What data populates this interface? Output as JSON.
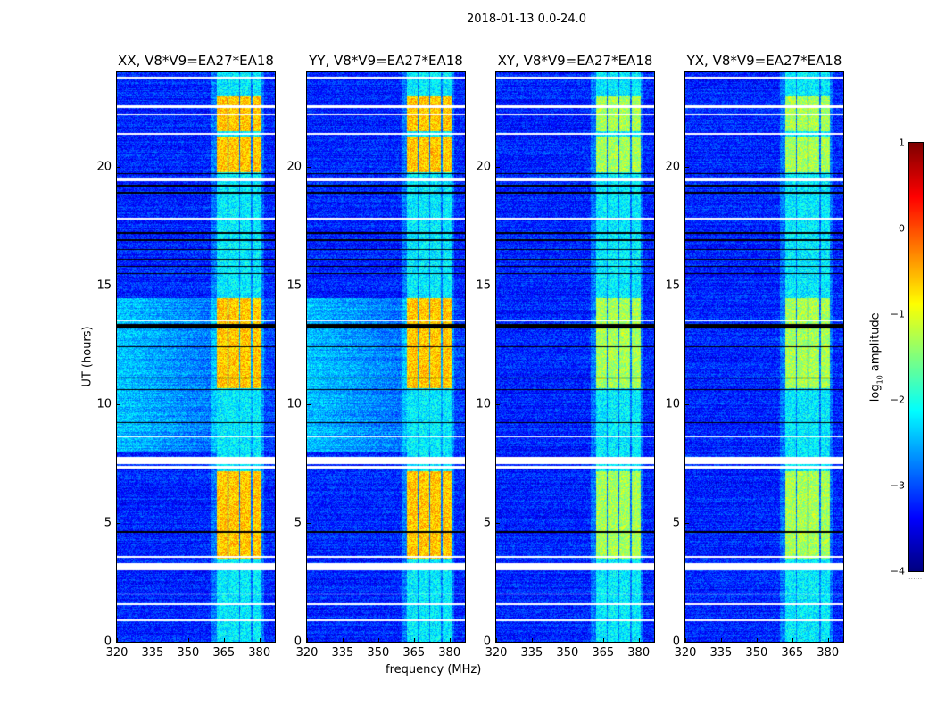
{
  "suptitle": "2018-01-13 0.0-24.0",
  "chart_data": {
    "type": "heatmap",
    "panels": [
      {
        "title": "XX, V8*V9=EA27*EA18",
        "pol": "XX"
      },
      {
        "title": "YY, V8*V9=EA27*EA18",
        "pol": "YY"
      },
      {
        "title": "XY, V8*V9=EA27*EA18",
        "pol": "XY"
      },
      {
        "title": "YX, V8*V9=EA27*EA18",
        "pol": "YX"
      }
    ],
    "xlabel": "frequency (MHz)",
    "ylabel": "UT (hours)",
    "xlim": [
      320,
      386.5
    ],
    "ylim": [
      0,
      24
    ],
    "xticks": [
      "320",
      "335",
      "350",
      "365",
      "380"
    ],
    "xtick_values": [
      320,
      335,
      350,
      365,
      380
    ],
    "yticks": [
      "0",
      "5",
      "10",
      "15",
      "20"
    ],
    "ytick_values": [
      0,
      5,
      10,
      15,
      20
    ],
    "colorbar": {
      "label": "log10 amplitude",
      "label_main": "log",
      "label_sub": "10",
      "label_rest": " amplitude",
      "colormap": "jet",
      "range": [
        -4,
        1
      ],
      "ticks": [
        "1",
        "0",
        "−1",
        "−2",
        "−3",
        "−4"
      ],
      "tick_values": [
        1,
        0,
        -1,
        -2,
        -3,
        -4
      ]
    },
    "background_log_amplitude": -3.2,
    "signal_bands_mhz": [
      [
        362,
        366.5
      ],
      [
        367,
        371.5
      ],
      [
        372,
        376.5
      ],
      [
        377,
        381
      ]
    ],
    "bright_time_ranges_h": [
      [
        3.5,
        7.2
      ],
      [
        10.7,
        14.5
      ],
      [
        19.8,
        21.3
      ],
      [
        21.5,
        23.0
      ]
    ],
    "bright_level_parallel": -0.6,
    "bright_level_cross": -1.3,
    "elevated_background_h": [
      [
        8.0,
        14.5
      ]
    ],
    "flagged_white_h": [
      [
        0.85,
        0.95
      ],
      [
        1.55,
        1.6
      ],
      [
        2.0,
        2.05
      ],
      [
        3.0,
        3.3
      ],
      [
        3.55,
        3.6
      ],
      [
        7.3,
        7.4
      ],
      [
        7.5,
        7.8
      ],
      [
        8.6,
        8.65
      ],
      [
        13.5,
        13.55
      ],
      [
        17.8,
        17.85
      ],
      [
        19.4,
        19.55
      ],
      [
        21.35,
        21.45
      ],
      [
        22.2,
        22.25
      ],
      [
        22.5,
        22.6
      ],
      [
        23.75,
        23.8
      ]
    ],
    "dropout_black_h": [
      [
        4.6,
        4.65
      ],
      [
        9.2,
        9.25
      ],
      [
        10.6,
        10.65
      ],
      [
        11.1,
        11.15
      ],
      [
        12.4,
        12.45
      ],
      [
        13.2,
        13.4
      ],
      [
        15.5,
        15.55
      ],
      [
        15.8,
        15.85
      ],
      [
        16.1,
        16.15
      ],
      [
        16.5,
        16.55
      ],
      [
        16.9,
        16.95
      ],
      [
        17.2,
        17.25
      ],
      [
        18.9,
        18.95
      ],
      [
        19.2,
        19.25
      ],
      [
        19.7,
        19.75
      ]
    ]
  }
}
